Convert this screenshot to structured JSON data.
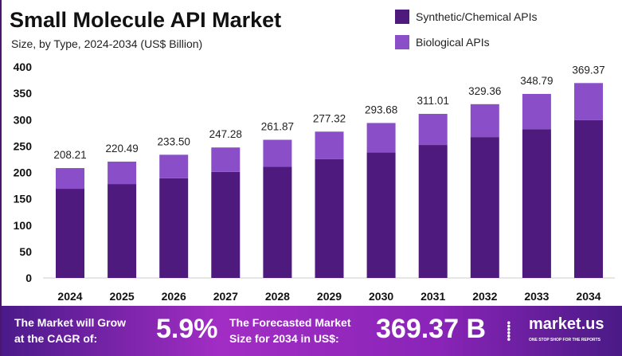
{
  "chart_data": {
    "type": "bar",
    "stacked": true,
    "title": "Small Molecule API Market",
    "subtitle": "Size, by Type, 2024-2034 (US$ Billion)",
    "categories": [
      "2024",
      "2025",
      "2026",
      "2027",
      "2028",
      "2029",
      "2030",
      "2031",
      "2032",
      "2033",
      "2034"
    ],
    "totals": [
      "208.21",
      "220.49",
      "233.50",
      "247.28",
      "261.87",
      "277.32",
      "293.68",
      "311.01",
      "329.36",
      "348.79",
      "369.37"
    ],
    "series": [
      {
        "name": "Synthetic/Chemical APIs",
        "color": "#4e1a7e",
        "values": [
          169,
          178,
          189,
          201,
          211,
          225,
          238,
          252,
          267,
          282,
          299
        ]
      },
      {
        "name": "Biological APIs",
        "color": "#8a4fc8",
        "values": [
          39.21,
          42.49,
          44.5,
          46.28,
          50.87,
          52.32,
          55.68,
          59.01,
          62.36,
          66.79,
          70.37
        ]
      }
    ],
    "yticks": [
      0,
      50,
      100,
      150,
      200,
      250,
      300,
      350,
      400
    ],
    "ylim": [
      0,
      400
    ],
    "grid": false,
    "legend": "top-right"
  },
  "banner": {
    "cagr_label_1": "The Market will Grow",
    "cagr_label_2": "at the CAGR of:",
    "cagr": "5.9%",
    "forecast_label_1": "The Forecasted Market",
    "forecast_label_2": "Size for 2034 in US$:",
    "forecast": "369.37 B",
    "brand": "market.us",
    "brand_tagline": "ONE STOP SHOP FOR THE REPORTS"
  }
}
